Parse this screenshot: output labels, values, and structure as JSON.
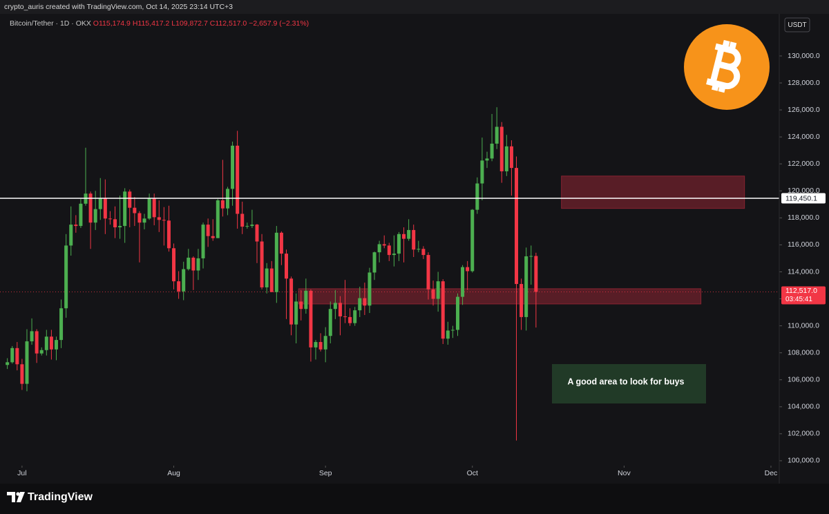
{
  "header": "crypto_auris created with TradingView.com, Oct 14, 2025 23:14 UTC+3",
  "branding": "TradingView",
  "chart_data": {
    "type": "candlestick",
    "legend": {
      "symbol": "Bitcoin/Tether · 1D · OKX",
      "open": "O115,174.9",
      "high": "H115,417.2",
      "low": "L109,872.7",
      "close": "C112,517.0",
      "change": "−2,657.9 (−2.31%)"
    },
    "currency": "USDT",
    "up_color": "#4caf50",
    "down_color": "#f23645",
    "grid": false,
    "xlim": [
      -1.5,
      157.7
    ],
    "xticks": [
      {
        "value": 3,
        "label": "Jul"
      },
      {
        "value": 34,
        "label": "Aug"
      },
      {
        "value": 65,
        "label": "Sep"
      },
      {
        "value": 95,
        "label": "Oct"
      },
      {
        "value": 126,
        "label": "Nov"
      },
      {
        "value": 156,
        "label": "Dec"
      }
    ],
    "ylim": [
      99740,
      133020
    ],
    "yticks": [
      {
        "value": 100000,
        "label": "100,000.0"
      },
      {
        "value": 102000,
        "label": "102,000.0"
      },
      {
        "value": 104000,
        "label": "104,000.0"
      },
      {
        "value": 106000,
        "label": "106,000.0"
      },
      {
        "value": 108000,
        "label": "108,000.0"
      },
      {
        "value": 110000,
        "label": "110,000.0"
      },
      {
        "value": 112000,
        "label": "112,000.0"
      },
      {
        "value": 114000,
        "label": "114,000.0"
      },
      {
        "value": 116000,
        "label": "116,000.0"
      },
      {
        "value": 118000,
        "label": "118,000.0"
      },
      {
        "value": 120000,
        "label": "120,000.0"
      },
      {
        "value": 122000,
        "label": "122,000.0"
      },
      {
        "value": 124000,
        "label": "124,000.0"
      },
      {
        "value": 126000,
        "label": "126,000.0"
      },
      {
        "value": 128000,
        "label": "128,000.0"
      },
      {
        "value": 130000,
        "label": "130,000.0"
      }
    ],
    "open": [
      107100,
      107300,
      108350,
      107150,
      105700,
      108850,
      109600,
      107950,
      108200,
      109200,
      108250,
      108950,
      111300,
      115950,
      117500,
      117400,
      119050,
      119800,
      117650,
      118650,
      119450,
      117950,
      117900,
      117300,
      117400,
      119950,
      118750,
      118350,
      117650,
      117950,
      119450,
      118050,
      117850,
      117800,
      115750,
      113300,
      112550,
      114200,
      115050,
      114100,
      115000,
      117500,
      116650,
      116500,
      119300,
      118700,
      120150,
      123350,
      118300,
      117350,
      117400,
      117500,
      116250,
      112850,
      114250,
      112500,
      116900,
      115350,
      113500,
      110100,
      111800,
      111250,
      112600,
      108400,
      108800,
      108250,
      109250,
      111250,
      111700,
      110700,
      110650,
      110200,
      111150,
      112050,
      111500,
      113950,
      115450,
      116050,
      115950,
      115250,
      115350,
      116800,
      116450,
      117100,
      115650,
      115700,
      115250,
      112700,
      112000,
      113300,
      109050,
      109650,
      109700,
      112150,
      114350,
      114050,
      118600,
      120550,
      122250,
      122400,
      123500,
      124750,
      121450,
      123300,
      121700,
      113100,
      110650,
      115150,
      115174.9
    ],
    "high": [
      107600,
      108500,
      108800,
      107550,
      109750,
      110550,
      109750,
      108400,
      109700,
      109700,
      109200,
      111950,
      116800,
      118850,
      118200,
      119400,
      123200,
      119950,
      120000,
      120950,
      120850,
      118500,
      118850,
      119650,
      120200,
      120100,
      119550,
      118500,
      118300,
      119800,
      119800,
      119300,
      118800,
      118900,
      116100,
      114050,
      114750,
      115700,
      115150,
      115700,
      117650,
      117950,
      117900,
      119400,
      122300,
      120300,
      123650,
      124450,
      119200,
      117650,
      118600,
      117550,
      116800,
      114650,
      114800,
      117400,
      117000,
      115650,
      113650,
      112400,
      112650,
      113500,
      112700,
      108950,
      109450,
      109900,
      111800,
      112650,
      112200,
      113400,
      111300,
      111400,
      112900,
      113200,
      114300,
      115500,
      116300,
      116700,
      116150,
      116700,
      116950,
      117300,
      117900,
      117500,
      116300,
      115900,
      115450,
      113350,
      114000,
      113450,
      110300,
      110000,
      112400,
      114500,
      114800,
      118650,
      121000,
      123950,
      122900,
      125700,
      126200,
      125100,
      124150,
      123750,
      122550,
      113500,
      115800,
      115950,
      115417.2
    ],
    "low": [
      106800,
      107200,
      106700,
      105250,
      105150,
      108600,
      107250,
      107800,
      107800,
      107500,
      107450,
      108350,
      110600,
      115200,
      116900,
      117250,
      118900,
      115700,
      117100,
      117850,
      116800,
      117500,
      116500,
      116450,
      116150,
      117300,
      117400,
      114700,
      117150,
      117850,
      117450,
      116950,
      115950,
      115500,
      112700,
      112000,
      111900,
      114100,
      112650,
      113400,
      114250,
      115850,
      116300,
      116500,
      118100,
      118200,
      118900,
      117200,
      116800,
      117200,
      117250,
      114650,
      112700,
      112400,
      112600,
      111700,
      114500,
      110500,
      109300,
      108700,
      110400,
      110900,
      107350,
      107500,
      108100,
      107300,
      108700,
      110500,
      109300,
      110200,
      110000,
      110000,
      110650,
      110800,
      110950,
      113400,
      114700,
      115750,
      114800,
      114400,
      114800,
      114700,
      116300,
      115100,
      115450,
      114950,
      111950,
      111500,
      111050,
      108650,
      108600,
      109100,
      109250,
      111550,
      112650,
      113950,
      118300,
      119300,
      121700,
      122200,
      123100,
      120600,
      121100,
      119650,
      101500,
      109700,
      109650,
      113050,
      109872.7
    ],
    "close": [
      107300,
      108350,
      107150,
      105700,
      108850,
      109600,
      107950,
      108200,
      109200,
      108250,
      108950,
      111300,
      115950,
      117500,
      117400,
      119050,
      119800,
      117650,
      118650,
      119450,
      117950,
      117900,
      117300,
      117400,
      119950,
      118750,
      118350,
      117650,
      117950,
      119450,
      118050,
      117850,
      117800,
      115750,
      113300,
      112550,
      114200,
      115050,
      114100,
      115000,
      117500,
      116650,
      116500,
      119300,
      118700,
      120150,
      123350,
      118300,
      117350,
      117400,
      117500,
      116250,
      112850,
      114250,
      112500,
      116900,
      115350,
      113500,
      110100,
      111800,
      111250,
      112600,
      108400,
      108800,
      108250,
      109250,
      111250,
      111700,
      110700,
      110650,
      110200,
      111150,
      112050,
      111500,
      113950,
      115450,
      116050,
      115950,
      115250,
      115350,
      116800,
      116450,
      117100,
      115650,
      115700,
      115250,
      112700,
      112000,
      113300,
      109050,
      109650,
      109700,
      112150,
      114350,
      114050,
      118600,
      120550,
      122250,
      122400,
      123500,
      124750,
      121450,
      123300,
      121700,
      113100,
      110650,
      115150,
      115174.9,
      112517.0
    ],
    "last_price": {
      "value": 112517.0,
      "label": "112,517.0",
      "countdown": "03:45:41"
    },
    "levels": [
      {
        "value": 119450.1,
        "label": "119,450.1",
        "color": "#ffffff"
      }
    ],
    "zones": [
      {
        "x": [
          113.2,
          150.6
        ],
        "y": [
          118700,
          121100
        ]
      },
      {
        "x": [
          59.5,
          141.7
        ],
        "y": [
          111620,
          112750
        ]
      }
    ],
    "annotation": "A good area to look for buys"
  }
}
